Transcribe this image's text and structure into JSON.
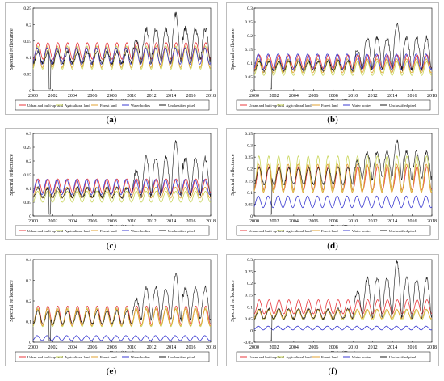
{
  "figure": {
    "panels": [
      {
        "label": "a",
        "label_text": "(a)"
      },
      {
        "label": "b",
        "label_text": "(b)"
      },
      {
        "label": "c",
        "label_text": "(c)"
      },
      {
        "label": "d",
        "label_text": "(d)"
      },
      {
        "label": "e",
        "label_text": "(e)"
      },
      {
        "label": "f",
        "label_text": "(f)"
      }
    ]
  },
  "chart_data": [
    {
      "type": "line",
      "ylabel": "Spectral reflectance",
      "xlabel": "Date (Year)",
      "xlim": [
        2000,
        2018
      ],
      "ylim": [
        0,
        0.25
      ],
      "xticks": [
        "2000",
        "2002",
        "2004",
        "2006",
        "2008",
        "2010",
        "2012",
        "2014",
        "2016",
        "2018"
      ],
      "yticks": [
        "0",
        "0.05",
        "0.1",
        "0.15",
        "0.2",
        "0.25"
      ],
      "legend_position": "bottom",
      "series": [
        {
          "name": "Urban and built-up land",
          "color": "#e8383d",
          "center": 0.12,
          "amplitude": 0.025
        },
        {
          "name": "Agricultural land",
          "color": "#c9d65a",
          "center": 0.1,
          "amplitude": 0.035
        },
        {
          "name": "Forest land",
          "color": "#e0a030",
          "center": 0.1,
          "amplitude": 0.03
        },
        {
          "name": "Water bodies",
          "color": "#3b3bd1",
          "center": 0.105,
          "amplitude": 0.025
        },
        {
          "name": "Unclassified pixel",
          "color": "#1a1a1a",
          "baseline": 0.1,
          "peak_2014_5": 0.24
        }
      ]
    },
    {
      "type": "line",
      "ylabel": "Spectral reflectance",
      "xlabel": "Date (Year)",
      "xlim": [
        2000,
        2018
      ],
      "ylim": [
        0,
        0.3
      ],
      "xticks": [
        "2000",
        "2002",
        "2004",
        "2006",
        "2008",
        "2010",
        "2012",
        "2014",
        "2016",
        "2018"
      ],
      "yticks": [
        "0",
        "0.05",
        "0.1",
        "0.15",
        "0.2",
        "0.25",
        "0.3"
      ],
      "legend_position": "bottom",
      "series": [
        {
          "name": "Urban and built-up land",
          "color": "#e8383d",
          "center": 0.105,
          "amplitude": 0.025
        },
        {
          "name": "Agricultural land",
          "color": "#c9d65a",
          "center": 0.08,
          "amplitude": 0.025
        },
        {
          "name": "Forest land",
          "color": "#e0a030",
          "center": 0.09,
          "amplitude": 0.025
        },
        {
          "name": "Water bodies",
          "color": "#3b3bd1",
          "center": 0.105,
          "amplitude": 0.028
        },
        {
          "name": "Unclassified pixel",
          "color": "#1a1a1a",
          "baseline": 0.09,
          "peak_2014_5": 0.25
        }
      ]
    },
    {
      "type": "line",
      "ylabel": "Spectral reflectance",
      "xlabel": "Date (Year)",
      "xlim": [
        2000,
        2018
      ],
      "ylim": [
        0,
        0.3
      ],
      "xticks": [
        "2000",
        "2002",
        "2004",
        "2006",
        "2008",
        "2010",
        "2012",
        "2014",
        "2016",
        "2018"
      ],
      "yticks": [
        "0",
        "0.05",
        "0.1",
        "0.15",
        "0.2",
        "0.25",
        "0.3"
      ],
      "legend_position": "bottom",
      "series": [
        {
          "name": "Urban and built-up land",
          "color": "#e8383d",
          "center": 0.11,
          "amplitude": 0.025
        },
        {
          "name": "Agricultural land",
          "color": "#c9d65a",
          "center": 0.07,
          "amplitude": 0.02
        },
        {
          "name": "Forest land",
          "color": "#e0a030",
          "center": 0.085,
          "amplitude": 0.02
        },
        {
          "name": "Water bodies",
          "color": "#3b3bd1",
          "center": 0.105,
          "amplitude": 0.028
        },
        {
          "name": "Unclassified pixel",
          "color": "#1a1a1a",
          "baseline": 0.085,
          "peak_2014_5": 0.28
        }
      ]
    },
    {
      "type": "line",
      "ylabel": "Spectral reflectance",
      "xlabel": "Date (Year)",
      "xlim": [
        2000,
        2018
      ],
      "ylim": [
        0,
        0.35
      ],
      "xticks": [
        "2000",
        "2002",
        "2004",
        "2006",
        "2008",
        "2010",
        "2012",
        "2014",
        "2016",
        "2018"
      ],
      "yticks": [
        "0",
        "0.05",
        "0.1",
        "0.15",
        "0.2",
        "0.25",
        "0.3",
        "0.35"
      ],
      "legend_position": "bottom",
      "series": [
        {
          "name": "Urban and built-up land",
          "color": "#e8383d",
          "center": 0.16,
          "amplitude": 0.05
        },
        {
          "name": "Agricultural land",
          "color": "#c9d65a",
          "center": 0.18,
          "amplitude": 0.075
        },
        {
          "name": "Forest land",
          "color": "#e0a030",
          "center": 0.16,
          "amplitude": 0.06
        },
        {
          "name": "Water bodies",
          "color": "#3b3bd1",
          "center": 0.06,
          "amplitude": 0.025
        },
        {
          "name": "Unclassified pixel",
          "color": "#1a1a1a",
          "baseline": 0.17,
          "peak_2014_5": 0.33
        }
      ]
    },
    {
      "type": "line",
      "ylabel": "Spectral reflectance",
      "xlabel": "Date (Year)",
      "xlim": [
        2000,
        2018
      ],
      "ylim": [
        0,
        0.4
      ],
      "xticks": [
        "2000",
        "2002",
        "2004",
        "2006",
        "2008",
        "2010",
        "2012",
        "2014",
        "2016",
        "2018"
      ],
      "yticks": [
        "0",
        "0.1",
        "0.2",
        "0.3",
        "0.4"
      ],
      "legend_position": "bottom",
      "series": [
        {
          "name": "Urban and built-up land",
          "color": "#e8383d",
          "center": 0.13,
          "amplitude": 0.045
        },
        {
          "name": "Agricultural land",
          "color": "#c9d65a",
          "center": 0.12,
          "amplitude": 0.045
        },
        {
          "name": "Forest land",
          "color": "#e0a030",
          "center": 0.12,
          "amplitude": 0.04
        },
        {
          "name": "Water bodies",
          "color": "#3b3bd1",
          "center": 0.02,
          "amplitude": 0.012
        },
        {
          "name": "Unclassified pixel",
          "color": "#1a1a1a",
          "baseline": 0.12,
          "peak_2014_5": 0.34
        }
      ]
    },
    {
      "type": "line",
      "ylabel": "Spectral reflectance",
      "xlabel": "Date (Year)",
      "xlim": [
        2000,
        2018
      ],
      "ylim": [
        -0.05,
        0.3
      ],
      "xticks": [
        "2000",
        "2002",
        "2004",
        "2006",
        "2008",
        "2010",
        "2012",
        "2014",
        "2016",
        "2018"
      ],
      "yticks": [
        "-0.05",
        "0",
        "0.05",
        "0.1",
        "0.15",
        "0.2",
        "0.25",
        "0.3"
      ],
      "legend_position": "bottom",
      "series": [
        {
          "name": "Urban and built-up land",
          "color": "#e8383d",
          "center": 0.1,
          "amplitude": 0.03
        },
        {
          "name": "Agricultural land",
          "color": "#c9d65a",
          "center": 0.065,
          "amplitude": 0.02
        },
        {
          "name": "Forest land",
          "color": "#e0a030",
          "center": 0.07,
          "amplitude": 0.02
        },
        {
          "name": "Water bodies",
          "color": "#3b3bd1",
          "center": 0.01,
          "amplitude": 0.008
        },
        {
          "name": "Unclassified pixel",
          "color": "#1a1a1a",
          "baseline": 0.07,
          "peak_2014_5": 0.3
        }
      ]
    }
  ]
}
